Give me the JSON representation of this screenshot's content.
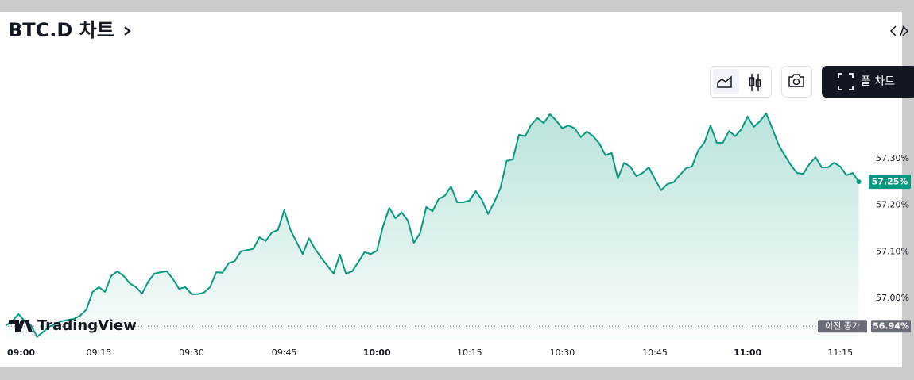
{
  "title": "BTC.D 차트",
  "full_chart_button": "풀 차트",
  "logo": "TradingView",
  "chart_data": {
    "type": "area",
    "color": "#089981",
    "x": [
      0,
      1,
      2,
      3,
      4,
      5,
      7,
      9,
      11,
      12,
      13,
      14,
      15,
      16,
      17,
      18,
      19,
      20,
      21,
      22,
      23,
      24,
      25,
      26,
      27,
      28,
      29,
      30,
      31,
      32,
      33,
      34,
      35,
      36,
      37,
      38,
      40,
      41,
      42,
      43,
      44,
      45,
      46,
      47,
      48,
      49,
      50,
      51,
      52,
      53,
      54,
      55,
      56,
      57,
      58,
      59,
      60,
      61,
      62,
      63,
      64,
      65,
      66,
      67,
      68,
      69,
      70,
      71,
      72,
      73,
      74,
      75,
      76,
      77,
      78,
      79,
      80,
      81,
      82,
      83,
      84,
      85,
      86,
      87,
      88,
      89,
      90,
      91,
      92,
      93,
      94,
      95,
      96,
      97,
      98,
      99,
      100,
      101,
      102,
      103,
      104,
      105,
      106,
      107,
      108,
      109,
      110,
      111,
      112,
      113,
      114,
      115,
      116,
      117,
      118,
      119,
      120,
      121,
      122,
      123,
      124,
      125,
      126,
      127,
      128,
      129,
      130,
      131,
      132,
      133,
      134,
      135,
      136,
      137,
      138
    ],
    "values": [
      56.942,
      56.951,
      56.966,
      56.951,
      56.942,
      56.917,
      56.939,
      56.951,
      56.956,
      56.963,
      56.976,
      57.014,
      57.024,
      57.014,
      57.048,
      57.058,
      57.048,
      57.032,
      57.024,
      57.01,
      57.036,
      57.053,
      57.056,
      57.058,
      57.041,
      57.02,
      57.024,
      57.009,
      57.009,
      57.012,
      57.024,
      57.056,
      57.055,
      57.075,
      57.08,
      57.101,
      57.106,
      57.131,
      57.123,
      57.141,
      57.147,
      57.189,
      57.147,
      57.121,
      57.095,
      57.129,
      57.106,
      57.087,
      57.07,
      57.053,
      57.094,
      57.053,
      57.058,
      57.078,
      57.099,
      57.095,
      57.102,
      57.155,
      57.194,
      57.172,
      57.184,
      57.167,
      57.119,
      57.14,
      57.196,
      57.187,
      57.213,
      57.22,
      57.24,
      57.206,
      57.206,
      57.21,
      57.23,
      57.211,
      57.181,
      57.206,
      57.237,
      57.295,
      57.298,
      57.351,
      57.348,
      57.373,
      57.387,
      57.376,
      57.395,
      57.382,
      57.365,
      57.371,
      57.365,
      57.346,
      57.358,
      57.348,
      57.332,
      57.307,
      57.312,
      57.257,
      57.291,
      57.283,
      57.262,
      57.269,
      57.281,
      57.256,
      57.232,
      57.245,
      57.249,
      57.264,
      57.279,
      57.283,
      57.317,
      57.334,
      57.371,
      57.334,
      57.334,
      57.359,
      57.348,
      57.363,
      57.39,
      57.368,
      57.38,
      57.397,
      57.365,
      57.33,
      57.307,
      57.286,
      57.269,
      57.267,
      57.288,
      57.303,
      57.281,
      57.281,
      57.291,
      57.283,
      57.264,
      57.269,
      57.25
    ],
    "xlim": [
      -1,
      139.6
    ],
    "xticks": [
      {
        "value": 0,
        "label": "09:00",
        "bold": true
      },
      {
        "value": 15,
        "label": "09:15"
      },
      {
        "value": 30,
        "label": "09:30"
      },
      {
        "value": 45,
        "label": "09:45"
      },
      {
        "value": 60,
        "label": "10:00",
        "bold": true
      },
      {
        "value": 75,
        "label": "10:15"
      },
      {
        "value": 90,
        "label": "10:30"
      },
      {
        "value": 105,
        "label": "10:45"
      },
      {
        "value": 120,
        "label": "11:00",
        "bold": true
      },
      {
        "value": 135,
        "label": "11:15"
      }
    ],
    "ylim": [
      56.908,
      57.47
    ],
    "yticks": [
      {
        "value": 57.0,
        "label": "57.00%"
      },
      {
        "value": 57.1,
        "label": "57.10%"
      },
      {
        "value": 57.2,
        "label": "57.20%"
      },
      {
        "value": 57.3,
        "label": "57.30%"
      }
    ],
    "current_price": {
      "value": 57.25,
      "label": "57.25%"
    },
    "previous_close": {
      "name": "이전 종가",
      "value": 56.94,
      "label": "56.94%"
    }
  }
}
